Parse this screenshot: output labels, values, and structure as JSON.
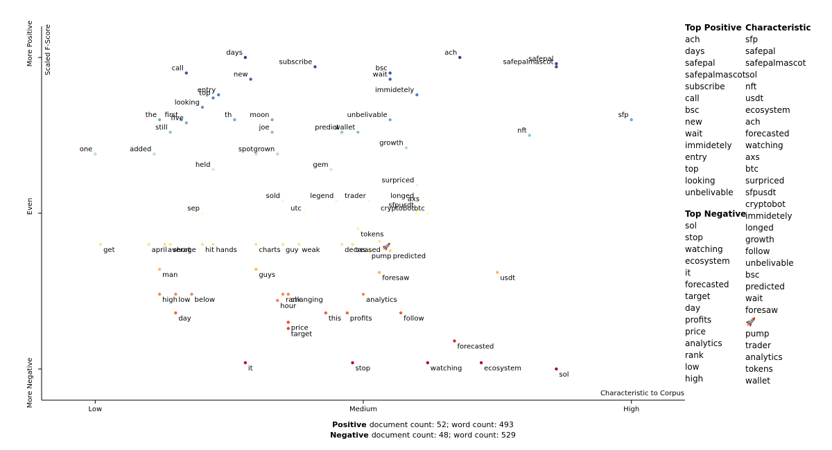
{
  "chart_data": {
    "type": "scatter",
    "y_label": "Scaled F-Score",
    "x_label": "Characteristic to Corpus",
    "xlim": [
      -0.1,
      1.1
    ],
    "ylim": [
      -0.1,
      1.1
    ],
    "xticks": [
      {
        "value": 0,
        "label": "Low"
      },
      {
        "value": 0.5,
        "label": "Medium"
      },
      {
        "value": 1,
        "label": "High"
      }
    ],
    "yticks": [
      {
        "value": 0,
        "label": "More Negative"
      },
      {
        "value": 0.5,
        "label": "Even"
      },
      {
        "value": 1,
        "label": "More Positive"
      }
    ],
    "color_stops": [
      "#a50026",
      "#d73027",
      "#f46d43",
      "#fdae61",
      "#fee090",
      "#ffffbf",
      "#e0f3f8",
      "#abd9e9",
      "#74add1",
      "#4575b4",
      "#313695"
    ],
    "labels": [
      "days",
      "subscribe",
      "ach",
      "safepal",
      "safepalmascot",
      "call",
      "new",
      "bsc",
      "wait",
      "entry",
      "top",
      "immidetely",
      "looking",
      "the",
      "first",
      "five",
      "th",
      "moon",
      "unbelivable",
      "still",
      "joe",
      "predict",
      "wallet",
      "nft",
      "sfp",
      "growth",
      "one",
      "added",
      "spot",
      "grown",
      "held",
      "gem",
      "surpriced",
      "sold",
      "legend",
      "trader",
      "longed",
      "axs",
      "sfpusdt",
      "cryptobot",
      "btc",
      "sep",
      "utc",
      "tokens",
      "🚀",
      "predicted",
      "pump",
      "get",
      "april",
      "average",
      "short",
      "hit",
      "hands",
      "charts",
      "guy",
      "weak",
      "tas",
      "decreased",
      "man",
      "guys",
      "foresaw",
      "usdt",
      "high",
      "low",
      "below",
      "rank",
      "changing",
      "analytics",
      "hour",
      "day",
      "this",
      "profits",
      "follow",
      "price",
      "target",
      "forecasted",
      "it",
      "stop",
      "watching",
      "ecosystem",
      "sol"
    ],
    "x": [
      0.28,
      0.41,
      0.68,
      0.86,
      0.86,
      0.17,
      0.29,
      0.55,
      0.55,
      0.23,
      0.22,
      0.6,
      0.2,
      0.12,
      0.16,
      0.17,
      0.26,
      0.33,
      0.55,
      0.14,
      0.33,
      0.46,
      0.49,
      0.81,
      1.0,
      0.58,
      0.0,
      0.11,
      0.3,
      0.34,
      0.22,
      0.44,
      0.6,
      0.35,
      0.45,
      0.51,
      0.6,
      0.61,
      0.6,
      0.6,
      0.62,
      0.2,
      0.39,
      0.49,
      0.53,
      0.55,
      0.51,
      0.01,
      0.1,
      0.13,
      0.14,
      0.2,
      0.22,
      0.3,
      0.35,
      0.38,
      0.48,
      0.46,
      0.12,
      0.3,
      0.53,
      0.75,
      0.12,
      0.15,
      0.18,
      0.35,
      0.36,
      0.5,
      0.34,
      0.15,
      0.43,
      0.47,
      0.57,
      0.36,
      0.36,
      0.67,
      0.28,
      0.48,
      0.62,
      0.72,
      0.86
    ],
    "y": [
      1.0,
      0.97,
      1.0,
      0.98,
      0.97,
      0.95,
      0.93,
      0.95,
      0.93,
      0.88,
      0.87,
      0.88,
      0.84,
      0.8,
      0.8,
      0.79,
      0.8,
      0.8,
      0.8,
      0.76,
      0.76,
      0.76,
      0.76,
      0.75,
      0.8,
      0.71,
      0.69,
      0.69,
      0.69,
      0.69,
      0.64,
      0.64,
      0.59,
      0.54,
      0.54,
      0.54,
      0.54,
      0.53,
      0.51,
      0.5,
      0.5,
      0.5,
      0.5,
      0.45,
      0.41,
      0.38,
      0.38,
      0.4,
      0.4,
      0.4,
      0.4,
      0.4,
      0.4,
      0.4,
      0.4,
      0.4,
      0.4,
      0.4,
      0.32,
      0.32,
      0.31,
      0.31,
      0.24,
      0.24,
      0.24,
      0.24,
      0.24,
      0.24,
      0.22,
      0.18,
      0.18,
      0.18,
      0.18,
      0.15,
      0.13,
      0.09,
      0.02,
      0.02,
      0.02,
      0.02,
      0.0
    ]
  },
  "sidebar": {
    "top_positive": {
      "title": "Top Positive",
      "items": [
        "ach",
        "days",
        "safepal",
        "safepalmascot",
        "subscribe",
        "call",
        "bsc",
        "new",
        "wait",
        "immidetely",
        "entry",
        "top",
        "looking",
        "unbelivable"
      ]
    },
    "top_negative": {
      "title": "Top Negative",
      "items": [
        "sol",
        "stop",
        "watching",
        "ecosystem",
        "it",
        "forecasted",
        "target",
        "day",
        "profits",
        "price",
        "analytics",
        "rank",
        "low",
        "high"
      ]
    },
    "characteristic": {
      "title": "Characteristic",
      "items": [
        "sfp",
        "safepal",
        "safepalmascot",
        "sol",
        "nft",
        "usdt",
        "ecosystem",
        "ach",
        "forecasted",
        "watching",
        "axs",
        "btc",
        "surpriced",
        "sfpusdt",
        "cryptobot",
        "immidetely",
        "longed",
        "growth",
        "follow",
        "unbelivable",
        "bsc",
        "predicted",
        "wait",
        "foresaw",
        "🚀",
        "pump",
        "trader",
        "analytics",
        "tokens",
        "wallet"
      ]
    }
  },
  "footer": [
    {
      "label": "Positive",
      "text": "document count: 52; word count: 493"
    },
    {
      "label": "Negative",
      "text": "document count: 48; word count: 529"
    }
  ]
}
